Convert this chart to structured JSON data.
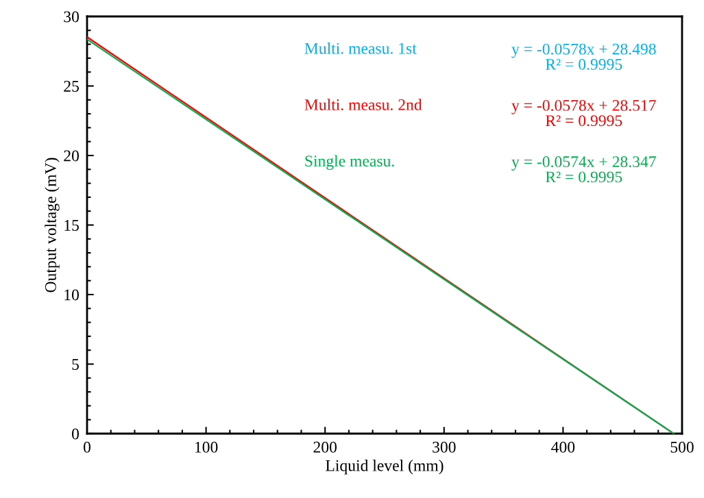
{
  "chart_data": {
    "type": "line",
    "xlabel": "Liquid level (mm)",
    "ylabel": "Output voltage (mV)",
    "xlim": [
      0,
      500
    ],
    "xticks": [
      0,
      100,
      200,
      300,
      400,
      500
    ],
    "ylim": [
      0,
      30
    ],
    "yticks": [
      0,
      5,
      10,
      15,
      20,
      25,
      30
    ],
    "x": [
      0,
      493
    ],
    "grid": false,
    "legend": false,
    "marker": "none",
    "line_style": "solid",
    "series": [
      {
        "name": "Multi. measu. 1st",
        "color": "#00b0f0",
        "values": [
          null,
          null
        ]
      },
      {
        "name": "Multi. measu. 2nd",
        "color": "#ff0000",
        "values": [
          28.52,
          0
        ]
      },
      {
        "name": "Single measu.",
        "color": "#00b050",
        "values": [
          28.35,
          0
        ]
      }
    ],
    "annotations": [
      "y = -0.0578x + 28.498\nR² = 0.9995",
      "y = -0.0578x + 28.517\nR² = 0.9995",
      "y = -0.0574x + 28.347\nR² = 0.9995"
    ]
  }
}
